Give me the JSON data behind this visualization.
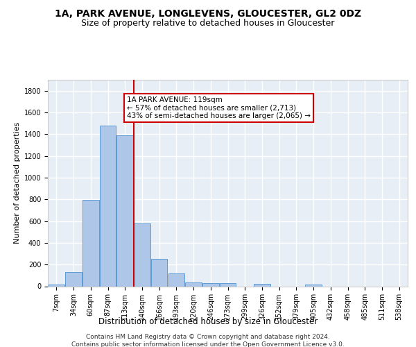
{
  "title1": "1A, PARK AVENUE, LONGLEVENS, GLOUCESTER, GL2 0DZ",
  "title2": "Size of property relative to detached houses in Gloucester",
  "xlabel": "Distribution of detached houses by size in Gloucester",
  "ylabel": "Number of detached properties",
  "bar_labels": [
    "7sqm",
    "34sqm",
    "60sqm",
    "87sqm",
    "113sqm",
    "140sqm",
    "166sqm",
    "193sqm",
    "220sqm",
    "246sqm",
    "273sqm",
    "299sqm",
    "326sqm",
    "352sqm",
    "379sqm",
    "405sqm",
    "432sqm",
    "458sqm",
    "485sqm",
    "511sqm",
    "538sqm"
  ],
  "bar_values": [
    15,
    130,
    795,
    1480,
    1390,
    575,
    250,
    115,
    35,
    30,
    30,
    0,
    20,
    0,
    0,
    15,
    0,
    0,
    0,
    0,
    0
  ],
  "bar_color": "#aec6e8",
  "bar_edge_color": "#5b9bd5",
  "vline_x": 4.5,
  "annotation_title": "1A PARK AVENUE: 119sqm",
  "annotation_line1": "← 57% of detached houses are smaller (2,713)",
  "annotation_line2": "43% of semi-detached houses are larger (2,065) →",
  "annotation_box_color": "#ffffff",
  "annotation_box_edge": "#cc0000",
  "vline_color": "#cc0000",
  "footer1": "Contains HM Land Registry data © Crown copyright and database right 2024.",
  "footer2": "Contains public sector information licensed under the Open Government Licence v3.0.",
  "ylim": [
    0,
    1900
  ],
  "yticks": [
    0,
    200,
    400,
    600,
    800,
    1000,
    1200,
    1400,
    1600,
    1800
  ],
  "background_color": "#e8eef5",
  "grid_color": "#ffffff",
  "title1_fontsize": 10,
  "title2_fontsize": 9,
  "xlabel_fontsize": 8.5,
  "ylabel_fontsize": 8,
  "tick_fontsize": 7,
  "footer_fontsize": 6.5,
  "ann_fontsize": 7.5
}
